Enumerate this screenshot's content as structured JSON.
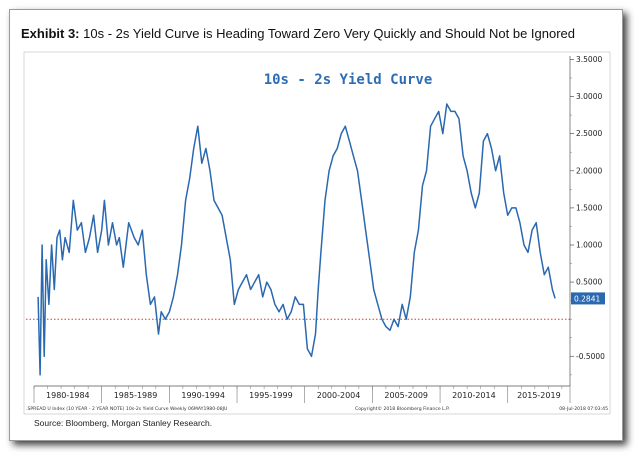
{
  "exhibit": {
    "label": "Exhibit 3:",
    "title": "10s - 2s Yield Curve is Heading Toward Zero Very Quickly and Should Not be Ignored"
  },
  "source": "Source: Bloomberg, Morgan Stanley Research.",
  "footer": {
    "index_label": ".SPREAD U Index (10 YEAR - 2 YEAR NOTE) 10s-2s Yield Curve  Weekly 06MAY1980-08JU",
    "copyright": "Copyright© 2018 Bloomberg Finance L.P.",
    "timestamp": "08-Jul-2018 07:03:45"
  },
  "colors": {
    "line": "#2a68b0",
    "title": "#2f6db3",
    "zero_line": "#d9382f",
    "value_box": "#2a68b0"
  },
  "chart_data": {
    "type": "line",
    "title": "10s - 2s Yield Curve",
    "xlabel": "",
    "ylabel": "",
    "xlim": [
      1980.0,
      2019.6
    ],
    "ylim": [
      -0.9,
      3.6
    ],
    "y_ticks": [
      3.5,
      3.0,
      2.5,
      2.0,
      1.5,
      1.0,
      0.5,
      -0.5
    ],
    "y_tick_labels": [
      "3.5000",
      "3.0000",
      "2.5000",
      "2.0000",
      "1.5000",
      "1.0000",
      "0.5000",
      "-0.5000"
    ],
    "x_period_labels": [
      "1980-1984",
      "1985-1989",
      "1990-1994",
      "1995-1999",
      "2000-2004",
      "2005-2009",
      "2010-2014",
      "2015-2019"
    ],
    "x_period_bounds": [
      1980.0,
      1985.0,
      1990.0,
      1995.0,
      2000.0,
      2005.0,
      2010.0,
      2015.0,
      2019.6
    ],
    "reference_line": {
      "y": 0,
      "style": "dotted",
      "color": "#d9382f"
    },
    "last_value": "0.2841",
    "grid": false,
    "legend": "none",
    "series": [
      {
        "x": [
          1980.3,
          1980.45,
          1980.6,
          1980.75,
          1980.9,
          1981.1,
          1981.3,
          1981.5,
          1981.7,
          1981.9,
          1982.1,
          1982.3,
          1982.6,
          1982.9,
          1983.2,
          1983.5,
          1983.8,
          1984.1,
          1984.4,
          1984.7,
          1985.0,
          1985.2,
          1985.5,
          1985.8,
          1986.1,
          1986.3,
          1986.6,
          1987.0,
          1987.4,
          1987.7,
          1988.0,
          1988.3,
          1988.6,
          1988.9,
          1989.2,
          1989.4,
          1989.7,
          1990.0,
          1990.3,
          1990.6,
          1990.9,
          1991.2,
          1991.5,
          1991.8,
          1992.1,
          1992.4,
          1992.7,
          1993.0,
          1993.3,
          1993.6,
          1993.9,
          1994.2,
          1994.5,
          1994.8,
          1995.1,
          1995.4,
          1995.7,
          1996.0,
          1996.3,
          1996.6,
          1996.9,
          1997.2,
          1997.5,
          1997.8,
          1998.1,
          1998.4,
          1998.7,
          1999.0,
          1999.3,
          1999.6,
          1999.9,
          2000.2,
          2000.5,
          2000.8,
          2001.0,
          2001.2,
          2001.5,
          2001.8,
          2002.1,
          2002.4,
          2002.7,
          2003.0,
          2003.3,
          2003.6,
          2003.9,
          2004.2,
          2004.5,
          2004.8,
          2005.1,
          2005.4,
          2005.7,
          2006.0,
          2006.3,
          2006.6,
          2006.9,
          2007.2,
          2007.5,
          2007.8,
          2008.1,
          2008.4,
          2008.7,
          2009.0,
          2009.3,
          2009.6,
          2009.9,
          2010.2,
          2010.5,
          2010.8,
          2011.1,
          2011.4,
          2011.7,
          2012.0,
          2012.3,
          2012.6,
          2012.9,
          2013.2,
          2013.5,
          2013.8,
          2014.1,
          2014.4,
          2014.7,
          2015.0,
          2015.3,
          2015.6,
          2015.9,
          2016.2,
          2016.5,
          2016.8,
          2017.1,
          2017.4,
          2017.7,
          2018.0,
          2018.3,
          2018.5
        ],
        "values": [
          0.3,
          -0.75,
          1.0,
          -0.5,
          0.8,
          0.2,
          1.0,
          0.4,
          1.1,
          1.2,
          0.8,
          1.1,
          0.9,
          1.6,
          1.2,
          1.3,
          0.9,
          1.1,
          1.4,
          0.9,
          1.2,
          1.6,
          1.0,
          1.3,
          1.0,
          1.1,
          0.7,
          1.3,
          1.1,
          1.0,
          1.2,
          0.6,
          0.2,
          0.3,
          -0.2,
          0.1,
          0.0,
          0.1,
          0.3,
          0.6,
          1.0,
          1.6,
          1.9,
          2.3,
          2.6,
          2.1,
          2.3,
          2.0,
          1.6,
          1.5,
          1.4,
          1.1,
          0.8,
          0.2,
          0.4,
          0.5,
          0.6,
          0.4,
          0.5,
          0.6,
          0.3,
          0.5,
          0.4,
          0.2,
          0.1,
          0.2,
          0.0,
          0.1,
          0.3,
          0.2,
          0.2,
          -0.4,
          -0.5,
          -0.2,
          0.4,
          0.9,
          1.6,
          2.0,
          2.2,
          2.3,
          2.5,
          2.6,
          2.4,
          2.2,
          2.0,
          1.6,
          1.2,
          0.8,
          0.4,
          0.2,
          0.0,
          -0.1,
          -0.15,
          0.0,
          -0.1,
          0.2,
          0.0,
          0.3,
          0.9,
          1.2,
          1.8,
          2.0,
          2.6,
          2.7,
          2.8,
          2.5,
          2.9,
          2.8,
          2.8,
          2.7,
          2.2,
          2.0,
          1.7,
          1.5,
          1.7,
          2.4,
          2.5,
          2.3,
          2.0,
          2.2,
          1.7,
          1.4,
          1.5,
          1.5,
          1.3,
          1.0,
          0.9,
          1.2,
          1.3,
          0.9,
          0.6,
          0.7,
          0.4,
          0.28
        ]
      }
    ]
  }
}
